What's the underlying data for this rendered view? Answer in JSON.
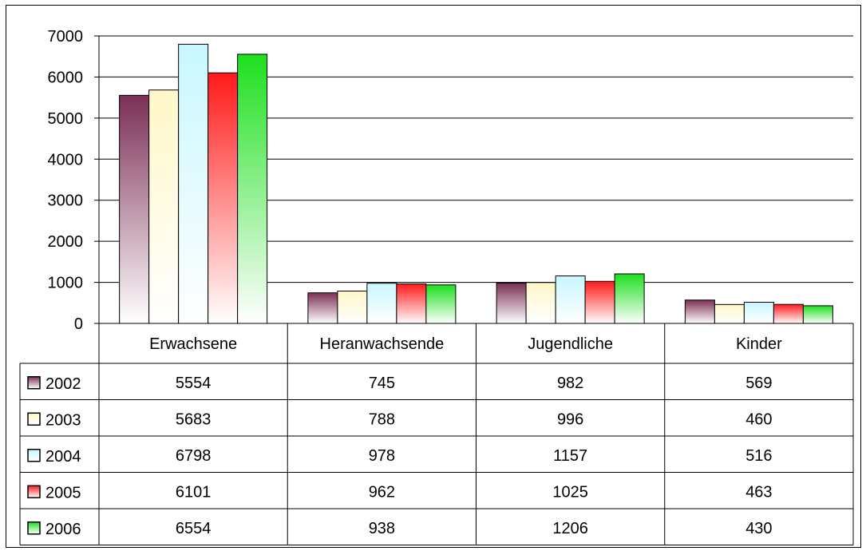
{
  "chart_data": {
    "type": "bar",
    "categories": [
      "Erwachsene",
      "Heranwachsende",
      "Jugendliche",
      "Kinder"
    ],
    "series": [
      {
        "name": "2002",
        "values": [
          5554,
          745,
          982,
          569
        ],
        "color_top": "#7b2f55",
        "color_bottom": "#ffffff"
      },
      {
        "name": "2003",
        "values": [
          5683,
          788,
          996,
          460
        ],
        "color_top": "#fff7c8",
        "color_bottom": "#ffffff"
      },
      {
        "name": "2004",
        "values": [
          6798,
          978,
          1157,
          516
        ],
        "color_top": "#c8f7ff",
        "color_bottom": "#ffffff"
      },
      {
        "name": "2005",
        "values": [
          6101,
          962,
          1025,
          463
        ],
        "color_top": "#ff1a1a",
        "color_bottom": "#ffffff"
      },
      {
        "name": "2006",
        "values": [
          6554,
          938,
          1206,
          430
        ],
        "color_top": "#1ddf1d",
        "color_bottom": "#ffffff"
      }
    ],
    "ylim": [
      0,
      7000
    ],
    "yticks": [
      "0",
      "1000",
      "2000",
      "3000",
      "4000",
      "5000",
      "6000",
      "7000"
    ],
    "grid": true,
    "legend": "data table rows"
  }
}
